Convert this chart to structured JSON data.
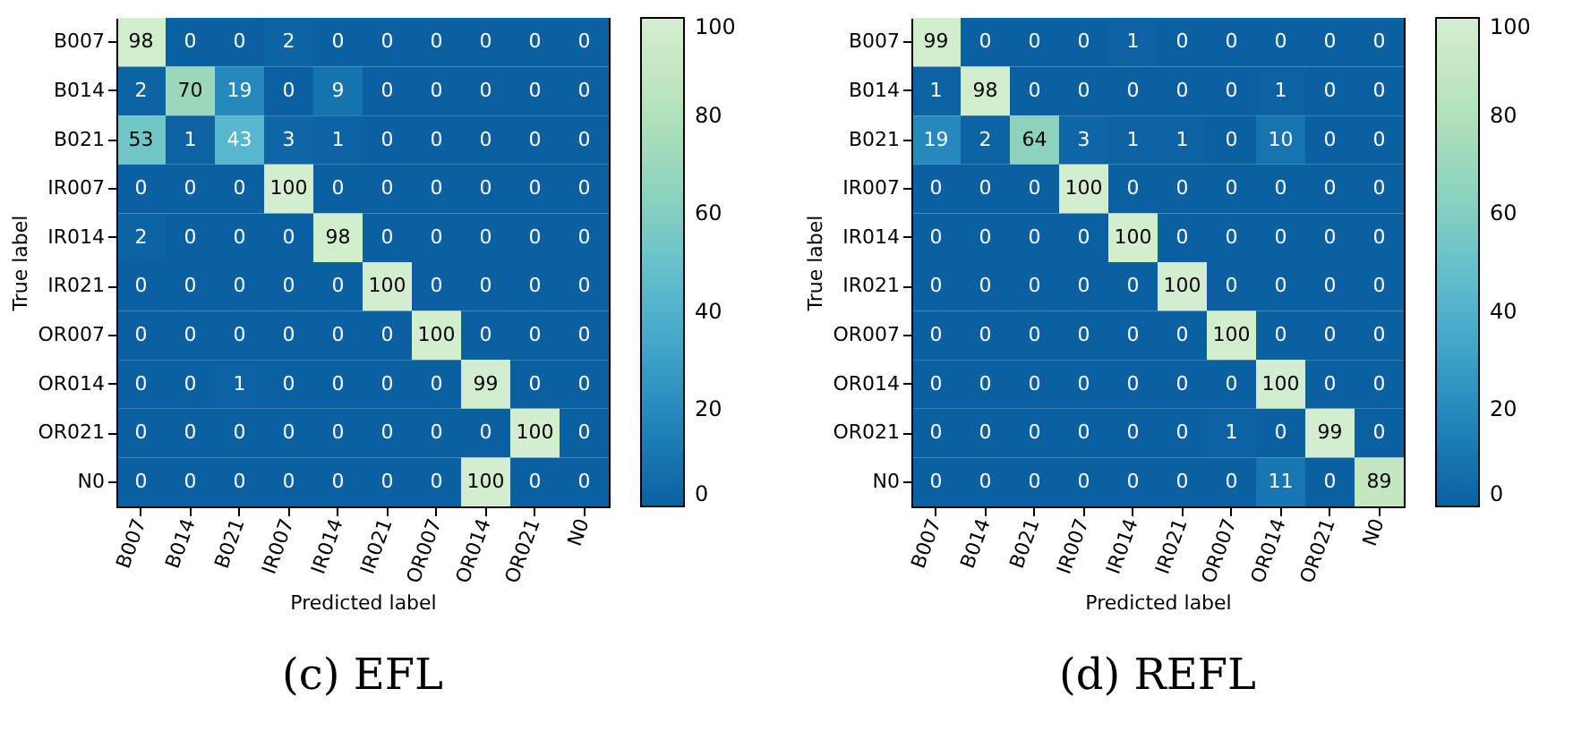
{
  "chart_data": [
    {
      "type": "heatmap",
      "title": "(c) EFL",
      "xlabel": "Predicted label",
      "ylabel": "True label",
      "categories": [
        "B007",
        "B014",
        "B021",
        "IR007",
        "IR014",
        "IR021",
        "OR007",
        "OR014",
        "OR021",
        "N0"
      ],
      "y_categories": [
        "B007",
        "B014",
        "B021",
        "IR007",
        "IR014",
        "IR021",
        "OR007",
        "OR014",
        "OR021",
        "N0"
      ],
      "cells": [
        [
          98,
          0,
          0,
          2,
          0,
          0,
          0,
          0,
          0,
          0
        ],
        [
          2,
          70,
          19,
          0,
          9,
          0,
          0,
          0,
          0,
          0
        ],
        [
          53,
          1,
          43,
          3,
          1,
          0,
          0,
          0,
          0,
          0
        ],
        [
          0,
          0,
          0,
          100,
          0,
          0,
          0,
          0,
          0,
          0
        ],
        [
          2,
          0,
          0,
          0,
          98,
          0,
          0,
          0,
          0,
          0
        ],
        [
          0,
          0,
          0,
          0,
          0,
          100,
          0,
          0,
          0,
          0
        ],
        [
          0,
          0,
          0,
          0,
          0,
          0,
          100,
          0,
          0,
          0
        ],
        [
          0,
          0,
          1,
          0,
          0,
          0,
          0,
          99,
          0,
          0
        ],
        [
          0,
          0,
          0,
          0,
          0,
          0,
          0,
          0,
          100,
          0
        ],
        [
          0,
          0,
          0,
          0,
          0,
          0,
          0,
          100,
          0,
          0
        ]
      ],
      "data_labels": true,
      "clim": [
        0,
        100
      ],
      "cticks": [
        0,
        20,
        40,
        60,
        80,
        100
      ]
    },
    {
      "type": "heatmap",
      "title": "(d) REFL",
      "xlabel": "Predicted label",
      "ylabel": "True label",
      "categories": [
        "B007",
        "B014",
        "B021",
        "IR007",
        "IR014",
        "IR021",
        "OR007",
        "OR014",
        "OR021",
        "N0"
      ],
      "y_categories": [
        "B007",
        "B014",
        "B021",
        "IR007",
        "IR014",
        "IR021",
        "OR007",
        "OR014",
        "OR021",
        "N0"
      ],
      "cells": [
        [
          99,
          0,
          0,
          0,
          1,
          0,
          0,
          0,
          0,
          0
        ],
        [
          1,
          98,
          0,
          0,
          0,
          0,
          0,
          1,
          0,
          0
        ],
        [
          19,
          2,
          64,
          3,
          1,
          1,
          0,
          10,
          0,
          0
        ],
        [
          0,
          0,
          0,
          100,
          0,
          0,
          0,
          0,
          0,
          0
        ],
        [
          0,
          0,
          0,
          0,
          100,
          0,
          0,
          0,
          0,
          0
        ],
        [
          0,
          0,
          0,
          0,
          0,
          100,
          0,
          0,
          0,
          0
        ],
        [
          0,
          0,
          0,
          0,
          0,
          0,
          100,
          0,
          0,
          0
        ],
        [
          0,
          0,
          0,
          0,
          0,
          0,
          0,
          100,
          0,
          0
        ],
        [
          0,
          0,
          0,
          0,
          0,
          0,
          1,
          0,
          99,
          0
        ],
        [
          0,
          0,
          0,
          0,
          0,
          0,
          0,
          11,
          0,
          89
        ]
      ],
      "data_labels": true,
      "clim": [
        0,
        100
      ],
      "cticks": [
        0,
        20,
        40,
        60,
        80,
        100
      ]
    }
  ]
}
